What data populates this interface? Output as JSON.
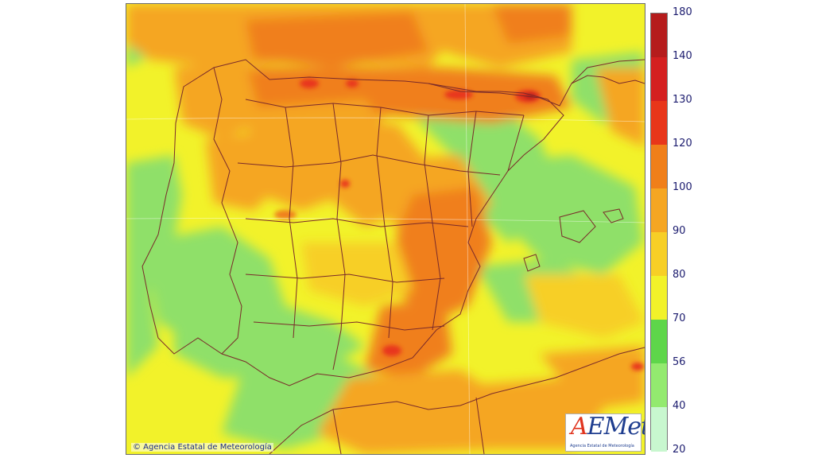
{
  "copyright": "© Agencia Estatal de Meteorología",
  "logo": {
    "first_letter": "A",
    "rest": "EMet",
    "subtitle": "Agencia Estatal de Meteorología"
  },
  "legend": {
    "labels": [
      "180",
      "140",
      "130",
      "120",
      "100",
      "90",
      "80",
      "70",
      "56",
      "40",
      "20"
    ],
    "bands": [
      {
        "color": "#b51c1c"
      },
      {
        "color": "#d42020"
      },
      {
        "color": "#e8361a"
      },
      {
        "color": "#f07f1a"
      },
      {
        "color": "#f5a622"
      },
      {
        "color": "#f7cf26"
      },
      {
        "color": "#f2f22a"
      },
      {
        "color": "#5ed64a"
      },
      {
        "color": "#93ea6f"
      },
      {
        "color": "#c8f7cf"
      }
    ]
  },
  "colors": {
    "sea_green": "#8fe069",
    "yellow": "#f2f22a",
    "gold": "#f7cf26",
    "orange": "#f5a622",
    "deep_orange": "#f07f1a",
    "red": "#e8361a",
    "border": "#7a2a2a"
  }
}
